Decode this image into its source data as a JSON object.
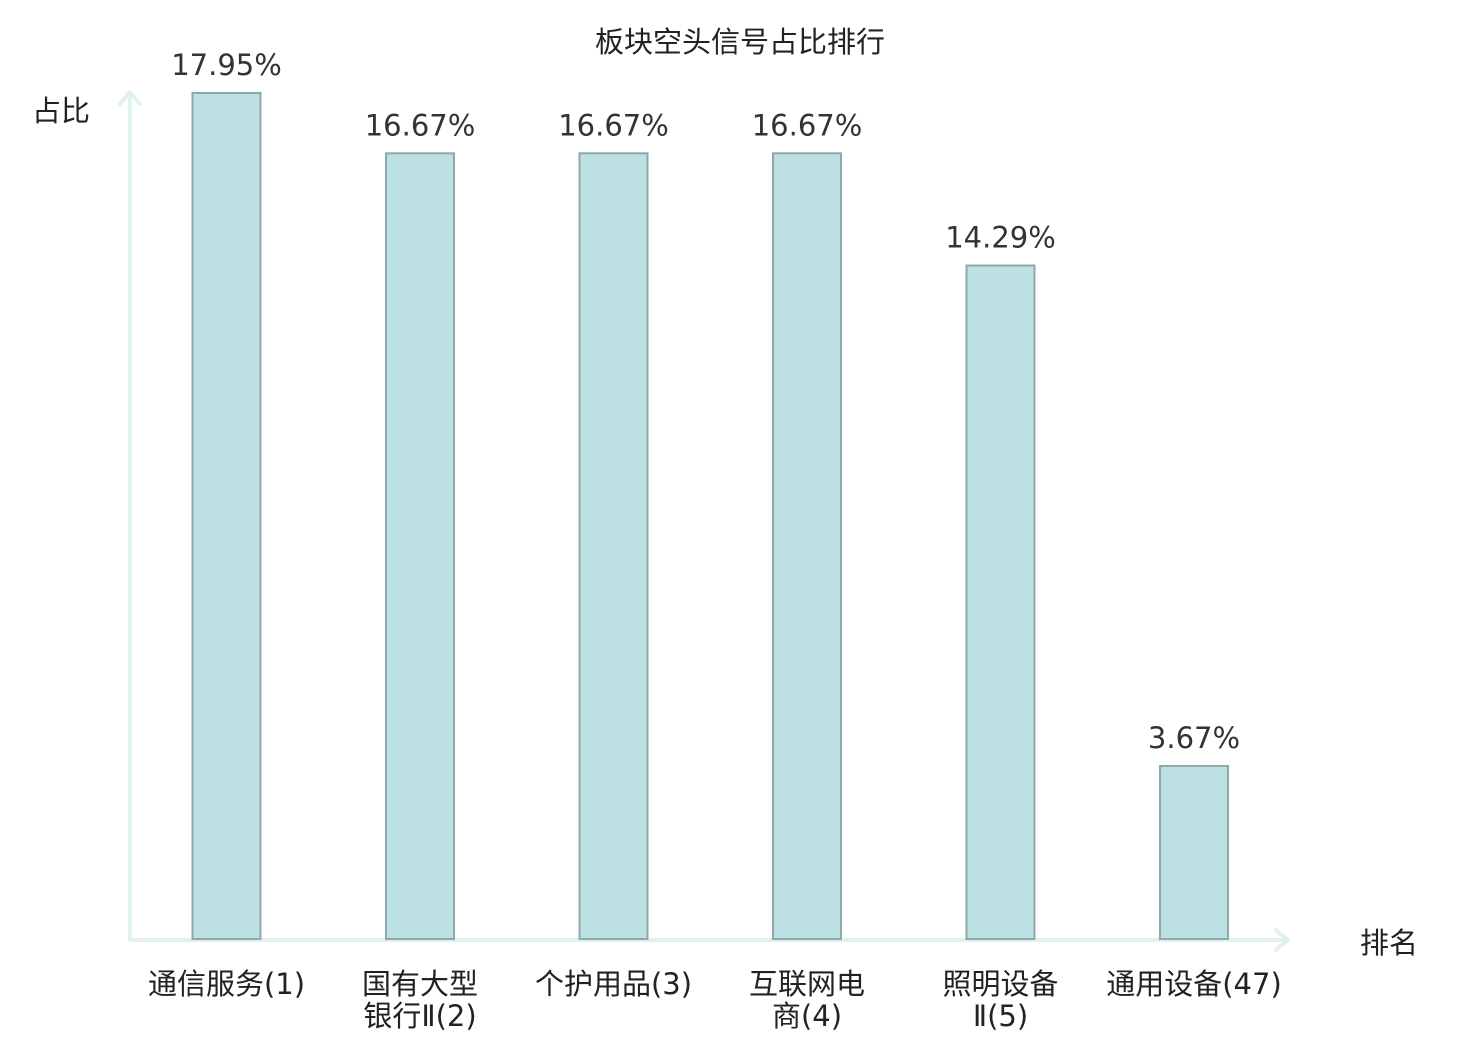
{
  "chart_data": {
    "type": "bar",
    "title": "板块空头信号占比排行",
    "ylabel": "占比",
    "xlabel": "排名",
    "categories": [
      [
        "通信服务(1)"
      ],
      [
        "国有大型",
        "银行Ⅱ(2)"
      ],
      [
        "个护用品(3)"
      ],
      [
        "互联网电",
        "商(4)"
      ],
      [
        "照明设备",
        "Ⅱ(5)"
      ],
      [
        "通用设备(47)"
      ]
    ],
    "values": [
      17.95,
      16.67,
      16.67,
      16.67,
      14.29,
      3.67
    ],
    "value_labels": [
      "17.95%",
      "16.67%",
      "16.67%",
      "16.67%",
      "14.29%",
      "3.67%"
    ],
    "ylim": [
      0,
      17.95
    ],
    "grid": false,
    "highlight_index": 5,
    "colors": {
      "bar_fill": "#bde0e3",
      "bar_stroke": "#8fa9ab",
      "axis": "#dff2f0",
      "highlight_text": "#e02020",
      "text": "#222222"
    }
  }
}
